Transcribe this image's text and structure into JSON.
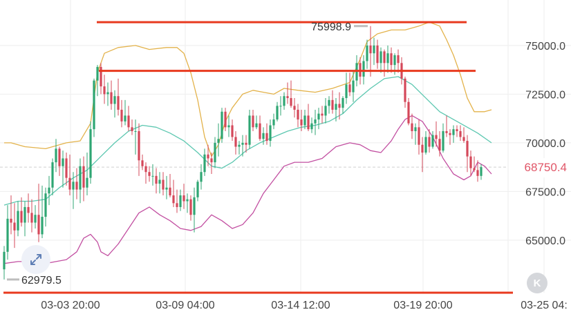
{
  "chart_data": {
    "type": "candlestick",
    "y_ticks": [
      "75000.0",
      "72500.0",
      "70000.0",
      "67500.0",
      "65000.0"
    ],
    "y_tick_values": [
      75000,
      72500,
      70000,
      67500,
      65000
    ],
    "x_ticks": [
      "03-03 20:00",
      "03-09 04:00",
      "03-14 12:00",
      "03-19 20:00",
      "03-25 04:"
    ],
    "ylim": [
      62300,
      76700
    ],
    "current_price": "68750.4",
    "high_label": "75998.9",
    "low_label": "62979.5",
    "horizontal_lines": [
      76200,
      73700,
      62300
    ],
    "grid": true,
    "colors": {
      "up": "#2fa673",
      "down": "#d4485a",
      "upper_band": "#e3b24a",
      "middle_band": "#5cc7b0",
      "lower_band": "#c24fa1",
      "drawn_line": "#e8391e",
      "grid": "#eeeeee"
    },
    "candles": [
      [
        63500,
        64700,
        62979.5,
        64400
      ],
      [
        64400,
        66800,
        64000,
        66100
      ],
      [
        66100,
        67300,
        65300,
        65900
      ],
      [
        65900,
        66900,
        64600,
        65500
      ],
      [
        65500,
        67000,
        65200,
        66500
      ],
      [
        66500,
        67200,
        65700,
        65900
      ],
      [
        65900,
        67000,
        65200,
        66700
      ],
      [
        66700,
        67400,
        65900,
        66400
      ],
      [
        66400,
        67100,
        65400,
        65900
      ],
      [
        65900,
        66800,
        65600,
        66300
      ],
      [
        66300,
        67900,
        64900,
        65300
      ],
      [
        65300,
        67800,
        65100,
        66200
      ],
      [
        66200,
        67700,
        65700,
        67400
      ],
      [
        67400,
        68300,
        66800,
        67700
      ],
      [
        67700,
        69200,
        67300,
        69000
      ],
      [
        69000,
        70200,
        68500,
        69700
      ],
      [
        69700,
        69800,
        68300,
        68800
      ],
      [
        68800,
        69600,
        67700,
        69200
      ],
      [
        69200,
        69500,
        67800,
        68200
      ],
      [
        68200,
        69400,
        67300,
        67600
      ],
      [
        67600,
        68500,
        66600,
        68000
      ],
      [
        68000,
        68700,
        67100,
        67600
      ],
      [
        67600,
        69200,
        66900,
        68800
      ],
      [
        68800,
        69300,
        67000,
        67700
      ],
      [
        67700,
        69500,
        67300,
        68200
      ],
      [
        68200,
        71100,
        67900,
        70700
      ],
      [
        70700,
        73300,
        70300,
        73200
      ],
      [
        73200,
        74000,
        72400,
        73900
      ],
      [
        73900,
        74100,
        72500,
        72900
      ],
      [
        72900,
        73500,
        72000,
        72500
      ],
      [
        72500,
        73100,
        71900,
        72600
      ],
      [
        72600,
        73200,
        71700,
        72000
      ],
      [
        72000,
        72700,
        71300,
        72400
      ],
      [
        72400,
        73300,
        71400,
        71700
      ],
      [
        71700,
        72200,
        70800,
        71100
      ],
      [
        71100,
        72200,
        70900,
        71400
      ],
      [
        71400,
        71900,
        70600,
        70800
      ],
      [
        70800,
        71200,
        70400,
        70600
      ],
      [
        70600,
        71200,
        69400,
        70600
      ],
      [
        70600,
        71000,
        68300,
        69100
      ],
      [
        69100,
        69400,
        68600,
        68800
      ],
      [
        68800,
        69000,
        67900,
        68500
      ],
      [
        68500,
        68800,
        68000,
        68300
      ],
      [
        68300,
        68900,
        67800,
        68300
      ],
      [
        68300,
        68700,
        67400,
        67900
      ],
      [
        67900,
        68500,
        67400,
        68100
      ],
      [
        68100,
        68500,
        67300,
        67600
      ],
      [
        67600,
        68300,
        67100,
        67700
      ],
      [
        67700,
        68400,
        67200,
        67300
      ],
      [
        67300,
        68100,
        66700,
        66900
      ],
      [
        66900,
        67600,
        66400,
        66700
      ],
      [
        66700,
        67600,
        66500,
        67300
      ],
      [
        67300,
        67900,
        66600,
        67000
      ],
      [
        67000,
        67400,
        66400,
        67100
      ],
      [
        67100,
        67300,
        66000,
        66300
      ],
      [
        66300,
        67700,
        65400,
        67200
      ],
      [
        67200,
        68100,
        67000,
        68000
      ],
      [
        68000,
        68900,
        67600,
        68500
      ],
      [
        68500,
        69700,
        68300,
        69400
      ],
      [
        69400,
        69900,
        68800,
        69200
      ],
      [
        69200,
        69500,
        68400,
        69000
      ],
      [
        69000,
        70300,
        68700,
        70000
      ],
      [
        70000,
        71000,
        69300,
        70200
      ],
      [
        70200,
        71800,
        70000,
        71600
      ],
      [
        71600,
        71800,
        70600,
        70800
      ],
      [
        70800,
        71400,
        70300,
        70900
      ],
      [
        70900,
        71200,
        70100,
        70300
      ],
      [
        70300,
        70600,
        69400,
        69800
      ],
      [
        69800,
        70100,
        69400,
        69900
      ],
      [
        69900,
        70400,
        69300,
        70000
      ],
      [
        70000,
        70400,
        69500,
        69900
      ],
      [
        69900,
        71700,
        69700,
        71400
      ],
      [
        71400,
        71700,
        70600,
        70800
      ],
      [
        70800,
        71400,
        70700,
        71000
      ],
      [
        71000,
        71400,
        70100,
        70200
      ],
      [
        70200,
        70800,
        69900,
        70500
      ],
      [
        70500,
        71000,
        69900,
        70100
      ],
      [
        70100,
        71200,
        69800,
        70900
      ],
      [
        70900,
        71500,
        70700,
        71200
      ],
      [
        71200,
        72100,
        71100,
        71900
      ],
      [
        71900,
        72400,
        71400,
        71900
      ],
      [
        71900,
        72600,
        71700,
        72400
      ],
      [
        72400,
        73100,
        72000,
        72300
      ],
      [
        72300,
        73200,
        71800,
        71900
      ],
      [
        71900,
        72300,
        71300,
        71700
      ],
      [
        71700,
        72000,
        70800,
        71200
      ],
      [
        71200,
        71700,
        70600,
        70900
      ],
      [
        70900,
        71700,
        70700,
        71400
      ],
      [
        71400,
        72000,
        70600,
        70700
      ],
      [
        70700,
        71300,
        70500,
        71000
      ],
      [
        71000,
        71700,
        70400,
        71200
      ],
      [
        71200,
        71800,
        70700,
        71500
      ],
      [
        71500,
        71900,
        71000,
        71400
      ],
      [
        71400,
        72300,
        71000,
        71900
      ],
      [
        71900,
        72400,
        71500,
        72200
      ],
      [
        72200,
        72700,
        71500,
        71700
      ],
      [
        71700,
        72300,
        71100,
        72000
      ],
      [
        72000,
        72600,
        71200,
        71800
      ],
      [
        71800,
        72400,
        71500,
        72300
      ],
      [
        72300,
        73600,
        72000,
        73000
      ],
      [
        73000,
        73600,
        72400,
        72600
      ],
      [
        72600,
        73700,
        72100,
        73200
      ],
      [
        73200,
        74500,
        72900,
        74100
      ],
      [
        74100,
        74400,
        73000,
        73400
      ],
      [
        73400,
        74500,
        73000,
        74200
      ],
      [
        74200,
        75300,
        73800,
        75000
      ],
      [
        75000,
        75998.9,
        73400,
        74600
      ],
      [
        74600,
        75400,
        74000,
        75000
      ],
      [
        75000,
        75300,
        73800,
        74100
      ],
      [
        74100,
        74900,
        73600,
        74700
      ],
      [
        74700,
        74800,
        73400,
        74100
      ],
      [
        74100,
        75000,
        73600,
        74600
      ],
      [
        74600,
        74900,
        73600,
        74000
      ],
      [
        74000,
        74600,
        73500,
        74500
      ],
      [
        74500,
        74800,
        73600,
        74100
      ],
      [
        74100,
        74400,
        73000,
        73300
      ],
      [
        73300,
        73400,
        71800,
        72100
      ],
      [
        72100,
        72300,
        70900,
        71000
      ],
      [
        71000,
        71500,
        70200,
        70600
      ],
      [
        70600,
        71000,
        69900,
        70800
      ],
      [
        70800,
        71200,
        69400,
        69900
      ],
      [
        69900,
        70300,
        68500,
        69500
      ],
      [
        69500,
        70600,
        69400,
        70300
      ],
      [
        70300,
        70700,
        69500,
        69800
      ],
      [
        69800,
        70600,
        69700,
        70400
      ],
      [
        70400,
        71100,
        69800,
        70200
      ],
      [
        70200,
        70600,
        69300,
        69600
      ],
      [
        69600,
        71000,
        69500,
        70600
      ],
      [
        70600,
        71400,
        70300,
        70500
      ],
      [
        70500,
        70700,
        69900,
        70400
      ],
      [
        70400,
        70900,
        70000,
        70700
      ],
      [
        70700,
        70900,
        70300,
        70600
      ],
      [
        70600,
        70900,
        70100,
        70300
      ],
      [
        70300,
        70800,
        70000,
        70100
      ],
      [
        70100,
        70400,
        68500,
        69300
      ],
      [
        69300,
        69600,
        68300,
        68700
      ],
      [
        68700,
        69300,
        68500,
        68600
      ],
      [
        68600,
        69100,
        68000,
        68300
      ],
      [
        68300,
        68900,
        68100,
        68750.4
      ]
    ],
    "bollinger_upper": [
      [
        0,
        70000
      ],
      [
        2,
        70000
      ],
      [
        6,
        69800
      ],
      [
        12,
        69700
      ],
      [
        18,
        70000
      ],
      [
        22,
        70100
      ],
      [
        25,
        71000
      ],
      [
        27,
        73600
      ],
      [
        29,
        74600
      ],
      [
        33,
        74900
      ],
      [
        38,
        75000
      ],
      [
        42,
        74800
      ],
      [
        47,
        74900
      ],
      [
        50,
        74900
      ],
      [
        52,
        74600
      ],
      [
        54,
        73600
      ],
      [
        56,
        72200
      ],
      [
        58,
        70300
      ],
      [
        60,
        69300
      ],
      [
        62,
        69900
      ],
      [
        64,
        71100
      ],
      [
        66,
        71800
      ],
      [
        69,
        72500
      ],
      [
        72,
        72700
      ],
      [
        75,
        72600
      ],
      [
        78,
        72500
      ],
      [
        81,
        72800
      ],
      [
        85,
        72700
      ],
      [
        90,
        72600
      ],
      [
        95,
        72800
      ],
      [
        100,
        73100
      ],
      [
        103,
        74300
      ],
      [
        105,
        75200
      ],
      [
        108,
        75600
      ],
      [
        112,
        75800
      ],
      [
        116,
        75800
      ],
      [
        120,
        76000
      ],
      [
        123,
        76200
      ],
      [
        126,
        76000
      ],
      [
        128,
        75300
      ],
      [
        130,
        74500
      ],
      [
        132,
        73500
      ],
      [
        134,
        72300
      ],
      [
        136,
        71600
      ],
      [
        139,
        71600
      ],
      [
        141,
        71700
      ]
    ],
    "bollinger_middle": [
      [
        0,
        66800
      ],
      [
        4,
        67000
      ],
      [
        8,
        67000
      ],
      [
        12,
        67100
      ],
      [
        16,
        67700
      ],
      [
        20,
        68200
      ],
      [
        24,
        68600
      ],
      [
        28,
        69300
      ],
      [
        32,
        70000
      ],
      [
        36,
        70600
      ],
      [
        40,
        70900
      ],
      [
        44,
        70800
      ],
      [
        48,
        70500
      ],
      [
        52,
        70100
      ],
      [
        56,
        69500
      ],
      [
        60,
        68800
      ],
      [
        63,
        68700
      ],
      [
        66,
        69000
      ],
      [
        70,
        69600
      ],
      [
        74,
        70000
      ],
      [
        78,
        70300
      ],
      [
        82,
        70600
      ],
      [
        86,
        70800
      ],
      [
        90,
        70900
      ],
      [
        94,
        71100
      ],
      [
        98,
        71500
      ],
      [
        102,
        72200
      ],
      [
        106,
        72800
      ],
      [
        110,
        73300
      ],
      [
        114,
        73400
      ],
      [
        118,
        73000
      ],
      [
        122,
        72300
      ],
      [
        126,
        71600
      ],
      [
        130,
        71200
      ],
      [
        134,
        70800
      ],
      [
        137,
        70500
      ],
      [
        141,
        70000
      ]
    ],
    "bollinger_lower": [
      [
        0,
        63800
      ],
      [
        4,
        63900
      ],
      [
        8,
        63900
      ],
      [
        12,
        63800
      ],
      [
        15,
        63900
      ],
      [
        18,
        64000
      ],
      [
        21,
        64400
      ],
      [
        23,
        65100
      ],
      [
        25,
        65300
      ],
      [
        27,
        64900
      ],
      [
        28,
        64400
      ],
      [
        30,
        64200
      ],
      [
        33,
        64800
      ],
      [
        36,
        65600
      ],
      [
        39,
        66400
      ],
      [
        42,
        66700
      ],
      [
        45,
        66300
      ],
      [
        48,
        66000
      ],
      [
        51,
        65600
      ],
      [
        54,
        65500
      ],
      [
        57,
        65700
      ],
      [
        60,
        66300
      ],
      [
        63,
        66000
      ],
      [
        66,
        65600
      ],
      [
        69,
        65800
      ],
      [
        72,
        66400
      ],
      [
        75,
        67400
      ],
      [
        78,
        68100
      ],
      [
        81,
        68800
      ],
      [
        84,
        69000
      ],
      [
        88,
        69000
      ],
      [
        92,
        69200
      ],
      [
        96,
        69800
      ],
      [
        100,
        70000
      ],
      [
        103,
        69900
      ],
      [
        106,
        69600
      ],
      [
        109,
        69500
      ],
      [
        112,
        70100
      ],
      [
        114,
        70700
      ],
      [
        116,
        71200
      ],
      [
        118,
        71400
      ],
      [
        121,
        71100
      ],
      [
        124,
        70300
      ],
      [
        127,
        69200
      ],
      [
        130,
        68400
      ],
      [
        133,
        68100
      ],
      [
        135,
        68300
      ],
      [
        137,
        69000
      ],
      [
        139,
        68800
      ],
      [
        141,
        68400
      ]
    ]
  },
  "controls": {
    "expand_icon": "expand-arrows-icon",
    "back_icon": "skip-back-icon",
    "back_glyph": "K"
  }
}
